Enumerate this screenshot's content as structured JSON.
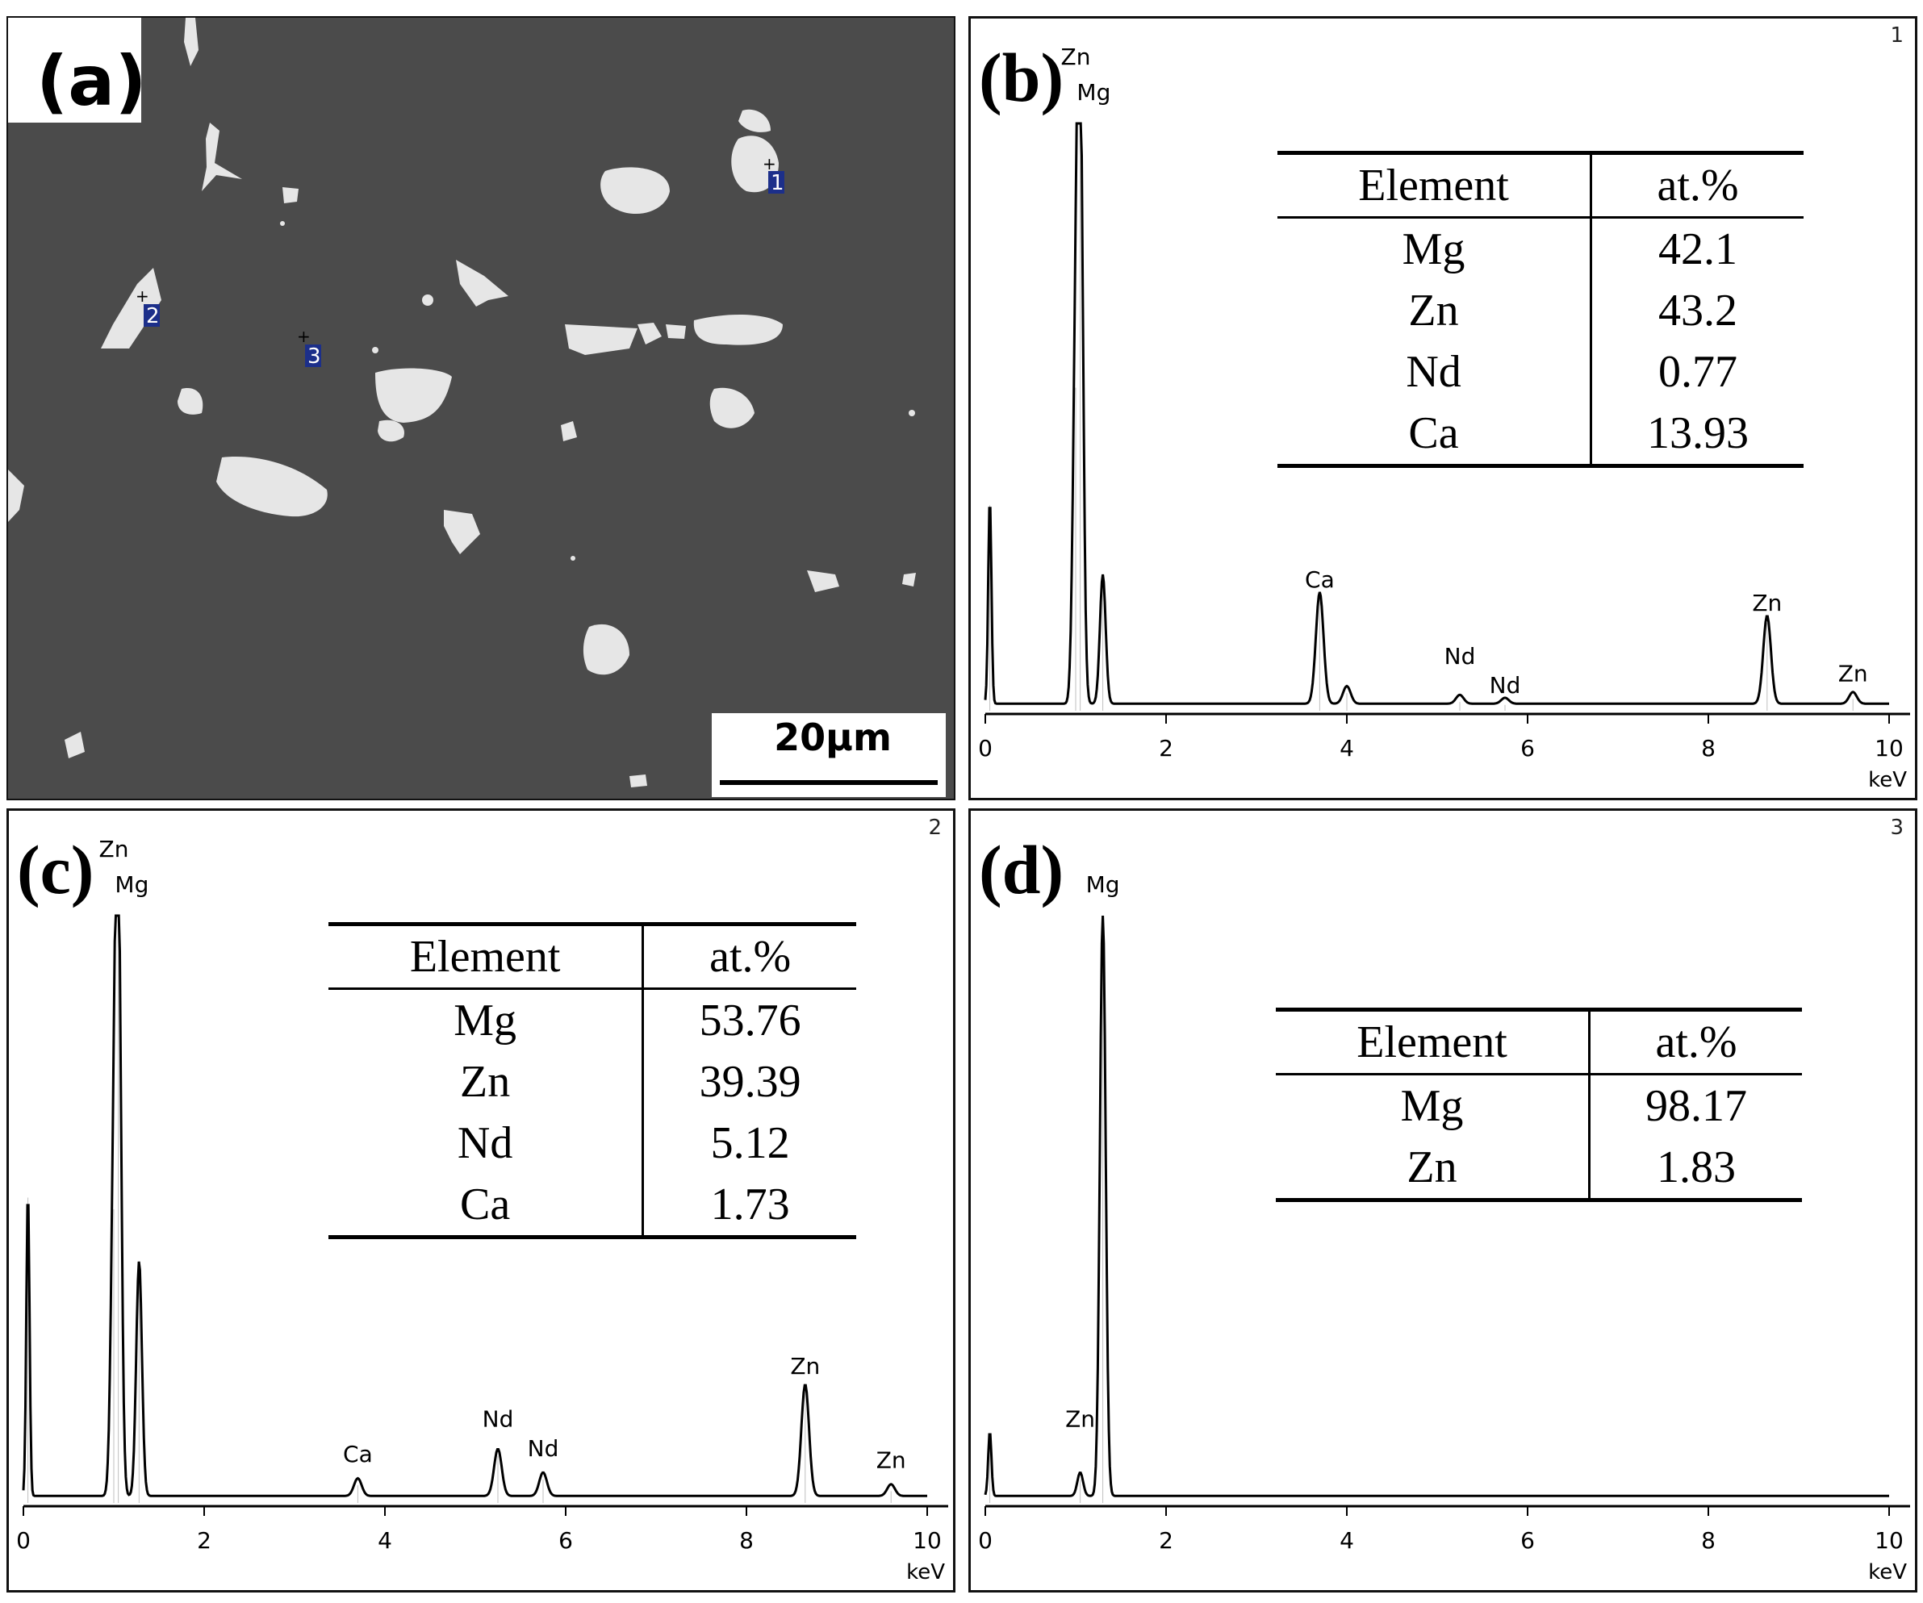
{
  "sem": {
    "label": "(a)",
    "scale_bar_text": "20μm",
    "point_markers": [
      "1",
      "2",
      "3"
    ]
  },
  "chart_data": [
    {
      "panel_label": "(b)",
      "spectrum_number": "1",
      "type": "line",
      "xlabel": "keV",
      "xlim": [
        0,
        10
      ],
      "x_ticks": [
        "0",
        "2",
        "4",
        "6",
        "8",
        "10"
      ],
      "peaks": [
        {
          "label": "",
          "energy": 0.05,
          "height": 0.35
        },
        {
          "label": "Zn",
          "energy": 1.0,
          "height": 0.55
        },
        {
          "label": "Mg",
          "energy": 1.05,
          "height": 1.0
        },
        {
          "label": "",
          "energy": 1.3,
          "height": 0.22
        },
        {
          "label": "Ca",
          "energy": 3.7,
          "height": 0.19
        },
        {
          "label": "",
          "energy": 4.0,
          "height": 0.03
        },
        {
          "label": "Nd",
          "energy": 5.25,
          "height": 0.015
        },
        {
          "label": "Nd",
          "energy": 5.75,
          "height": 0.01
        },
        {
          "label": "Zn",
          "energy": 8.65,
          "height": 0.15
        },
        {
          "label": "Zn",
          "energy": 9.6,
          "height": 0.02
        }
      ],
      "annotation_positions": [
        {
          "text": "Zn",
          "energy": 1.0,
          "level": 1.1
        },
        {
          "text": "Mg",
          "energy": 1.2,
          "level": 1.04
        },
        {
          "text": "Ca",
          "energy": 3.7,
          "level": 0.21
        },
        {
          "text": "Nd",
          "energy": 5.25,
          "level": 0.08
        },
        {
          "text": "Nd",
          "energy": 5.75,
          "level": 0.03
        },
        {
          "text": "Zn",
          "energy": 8.65,
          "level": 0.17
        },
        {
          "text": "Zn",
          "energy": 9.6,
          "level": 0.05
        }
      ],
      "table": {
        "headers": [
          "Element",
          "at.%"
        ],
        "rows": [
          [
            "Mg",
            "42.1"
          ],
          [
            "Zn",
            "43.2"
          ],
          [
            "Nd",
            "0.77"
          ],
          [
            "Ca",
            "13.93"
          ]
        ]
      }
    },
    {
      "panel_label": "(c)",
      "spectrum_number": "2",
      "type": "line",
      "xlabel": "keV",
      "xlim": [
        0,
        10
      ],
      "x_ticks": [
        "0",
        "2",
        "4",
        "6",
        "8",
        "10"
      ],
      "peaks": [
        {
          "label": "",
          "energy": 0.05,
          "height": 0.52
        },
        {
          "label": "Zn",
          "energy": 1.0,
          "height": 0.5
        },
        {
          "label": "Mg",
          "energy": 1.05,
          "height": 1.0
        },
        {
          "label": "",
          "energy": 1.28,
          "height": 0.4
        },
        {
          "label": "Ca",
          "energy": 3.7,
          "height": 0.03
        },
        {
          "label": "Nd",
          "energy": 5.25,
          "height": 0.08
        },
        {
          "label": "Nd",
          "energy": 5.75,
          "height": 0.04
        },
        {
          "label": "Zn",
          "energy": 8.65,
          "height": 0.19
        },
        {
          "label": "Zn",
          "energy": 9.6,
          "height": 0.02
        }
      ],
      "annotation_positions": [
        {
          "text": "Zn",
          "energy": 1.0,
          "level": 1.1
        },
        {
          "text": "Mg",
          "energy": 1.2,
          "level": 1.04
        },
        {
          "text": "Ca",
          "energy": 3.7,
          "level": 0.07
        },
        {
          "text": "Nd",
          "energy": 5.25,
          "level": 0.13
        },
        {
          "text": "Nd",
          "energy": 5.75,
          "level": 0.08
        },
        {
          "text": "Zn",
          "energy": 8.65,
          "level": 0.22
        },
        {
          "text": "Zn",
          "energy": 9.6,
          "level": 0.06
        }
      ],
      "table": {
        "headers": [
          "Element",
          "at.%"
        ],
        "rows": [
          [
            "Mg",
            "53.76"
          ],
          [
            "Zn",
            "39.39"
          ],
          [
            "Nd",
            "5.12"
          ],
          [
            "Ca",
            "1.73"
          ]
        ]
      }
    },
    {
      "panel_label": "(d)",
      "spectrum_number": "3",
      "type": "line",
      "xlabel": "keV",
      "xlim": [
        0,
        10
      ],
      "x_ticks": [
        "0",
        "2",
        "4",
        "6",
        "8",
        "10"
      ],
      "peaks": [
        {
          "label": "",
          "energy": 0.05,
          "height": 0.11
        },
        {
          "label": "Zn",
          "energy": 1.05,
          "height": 0.04
        },
        {
          "label": "Mg",
          "energy": 1.3,
          "height": 1.0
        }
      ],
      "annotation_positions": [
        {
          "text": "Mg",
          "energy": 1.3,
          "level": 1.04
        },
        {
          "text": "Zn",
          "energy": 1.05,
          "level": 0.13
        }
      ],
      "table": {
        "headers": [
          "Element",
          "at.%"
        ],
        "rows": [
          [
            "Mg",
            "98.17"
          ],
          [
            "Zn",
            "1.83"
          ]
        ]
      }
    }
  ]
}
